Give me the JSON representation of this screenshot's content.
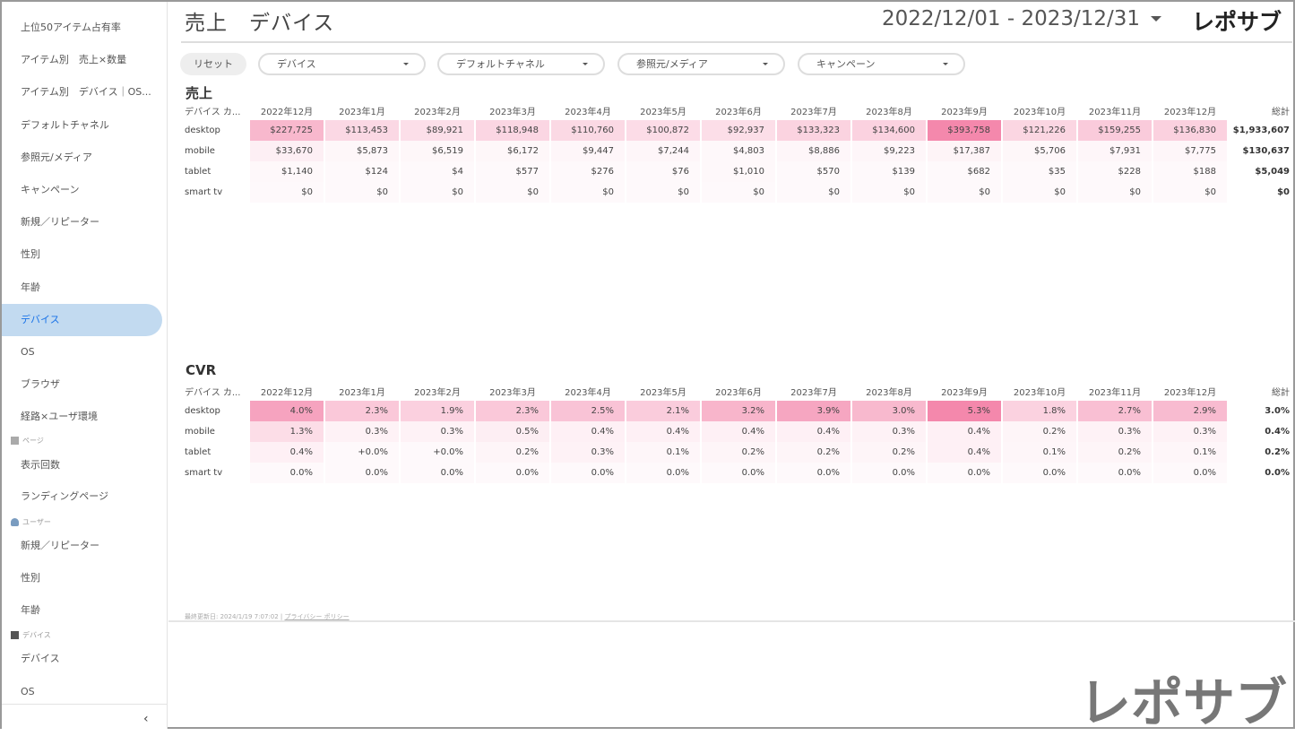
{
  "sidebar": {
    "items": [
      "上位50アイテム占有率",
      "アイテム別　売上×数量",
      "アイテム別　デバイス｜OS...",
      "デフォルトチャネル",
      "参照元/メディア",
      "キャンペーン",
      "新規／リピーター",
      "性別",
      "年齢",
      "デバイス",
      "OS",
      "ブラウザ",
      "経路×ユーザ環境"
    ],
    "active_index": 9,
    "section_page": "ページ",
    "page_items": [
      "表示回数",
      "ランディングページ"
    ],
    "section_user": "ユーザー",
    "user_items": [
      "新規／リピーター",
      "性別",
      "年齢"
    ],
    "section_device": "デバイス",
    "device_items": [
      "デバイス",
      "OS"
    ],
    "collapse": "‹"
  },
  "header": {
    "title": "売上　デバイス",
    "date_range": "2022/12/01 - 2023/12/31",
    "logo": "レポサブ"
  },
  "filters": {
    "reset": "リセット",
    "items": [
      "デバイス",
      "デフォルトチャネル",
      "参照元/メディア",
      "キャンペーン"
    ]
  },
  "heat_color": "#f06292",
  "months": [
    "2022年12月",
    "2023年1月",
    "2023年2月",
    "2023年3月",
    "2023年4月",
    "2023年5月",
    "2023年6月",
    "2023年7月",
    "2023年8月",
    "2023年9月",
    "2023年10月",
    "2023年11月",
    "2023年12月"
  ],
  "sales": {
    "title": "売上",
    "dim_header": "デバイス カ...",
    "total_header": "総計",
    "rows": [
      {
        "label": "desktop",
        "values": [
          "$227,725",
          "$113,453",
          "$89,921",
          "$118,948",
          "$110,760",
          "$100,872",
          "$92,937",
          "$133,323",
          "$134,600",
          "$393,758",
          "$121,226",
          "$159,255",
          "$136,830"
        ],
        "total": "$1,933,607"
      },
      {
        "label": "mobile",
        "values": [
          "$33,670",
          "$5,873",
          "$6,519",
          "$6,172",
          "$9,447",
          "$7,244",
          "$4,803",
          "$8,886",
          "$9,223",
          "$17,387",
          "$5,706",
          "$7,931",
          "$7,775"
        ],
        "total": "$130,637"
      },
      {
        "label": "tablet",
        "values": [
          "$1,140",
          "$124",
          "$4",
          "$577",
          "$276",
          "$76",
          "$1,010",
          "$570",
          "$139",
          "$682",
          "$35",
          "$228",
          "$188"
        ],
        "total": "$5,049"
      },
      {
        "label": "smart tv",
        "values": [
          "$0",
          "$0",
          "$0",
          "$0",
          "$0",
          "$0",
          "$0",
          "$0",
          "$0",
          "$0",
          "$0",
          "$0",
          "$0"
        ],
        "total": "$0"
      }
    ]
  },
  "cvr": {
    "title": "CVR",
    "dim_header": "デバイス カ...",
    "total_header": "総計",
    "rows": [
      {
        "label": "desktop",
        "values": [
          "4.0%",
          "2.3%",
          "1.9%",
          "2.3%",
          "2.5%",
          "2.1%",
          "3.2%",
          "3.9%",
          "3.0%",
          "5.3%",
          "1.8%",
          "2.7%",
          "2.9%"
        ],
        "total": "3.0%"
      },
      {
        "label": "mobile",
        "values": [
          "1.3%",
          "0.3%",
          "0.3%",
          "0.5%",
          "0.4%",
          "0.4%",
          "0.4%",
          "0.4%",
          "0.3%",
          "0.4%",
          "0.2%",
          "0.3%",
          "0.3%"
        ],
        "total": "0.4%"
      },
      {
        "label": "tablet",
        "values": [
          "0.4%",
          "+0.0%",
          "+0.0%",
          "0.2%",
          "0.3%",
          "0.1%",
          "0.2%",
          "0.2%",
          "0.2%",
          "0.4%",
          "0.1%",
          "0.2%",
          "0.1%"
        ],
        "total": "0.2%"
      },
      {
        "label": "smart tv",
        "values": [
          "0.0%",
          "0.0%",
          "0.0%",
          "0.0%",
          "0.0%",
          "0.0%",
          "0.0%",
          "0.0%",
          "0.0%",
          "0.0%",
          "0.0%",
          "0.0%",
          "0.0%"
        ],
        "total": "0.0%"
      }
    ]
  },
  "footer": {
    "updated": "最終更新日: 2024/1/19 7:07:02",
    "separator": " | ",
    "privacy": "プライバシー ポリシー"
  },
  "watermark_logo": "レポサブ"
}
